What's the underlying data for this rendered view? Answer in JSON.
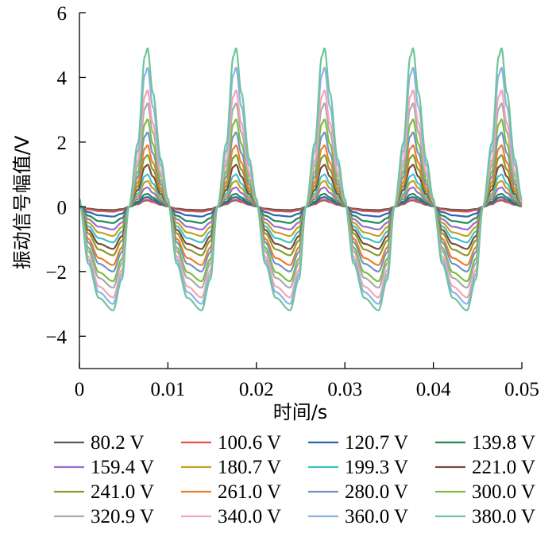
{
  "chart_data": {
    "type": "line",
    "title": "",
    "xlabel": "时间/s",
    "ylabel": "振动信号幅值/V",
    "xlim": [
      0,
      0.05
    ],
    "ylim": [
      -5,
      6
    ],
    "x_ticks": [
      "0",
      "0.01",
      "0.02",
      "0.03",
      "0.04",
      "0.05"
    ],
    "y_ticks": [
      "−4",
      "−2",
      "0",
      "2",
      "4",
      "6"
    ],
    "grid": false,
    "legend_position": "bottom",
    "period": 0.01,
    "series": [
      {
        "name": "80.2 V",
        "color": "#595959",
        "peak": 0.2,
        "trough": -0.1
      },
      {
        "name": "100.6 V",
        "color": "#e8524a",
        "peak": 0.22,
        "trough": -0.15
      },
      {
        "name": "120.7 V",
        "color": "#2a66b0",
        "peak": 0.3,
        "trough": -0.3
      },
      {
        "name": "139.8 V",
        "color": "#1e8a4f",
        "peak": 0.4,
        "trough": -0.5
      },
      {
        "name": "159.4 V",
        "color": "#9a6fc8",
        "peak": 0.6,
        "trough": -0.7
      },
      {
        "name": "180.7 V",
        "color": "#c7a020",
        "peak": 0.8,
        "trough": -0.9
      },
      {
        "name": "199.3 V",
        "color": "#3ec2c8",
        "peak": 1.0,
        "trough": -1.1
      },
      {
        "name": "221.0 V",
        "color": "#7a4a3a",
        "peak": 1.3,
        "trough": -1.3
      },
      {
        "name": "241.0 V",
        "color": "#8a9a2a",
        "peak": 1.6,
        "trough": -1.5
      },
      {
        "name": "261.0 V",
        "color": "#ee7d2a",
        "peak": 1.9,
        "trough": -1.8
      },
      {
        "name": "280.0 V",
        "color": "#6f93c4",
        "peak": 2.3,
        "trough": -2.0
      },
      {
        "name": "300.0 V",
        "color": "#7cbd40",
        "peak": 2.7,
        "trough": -2.3
      },
      {
        "name": "320.9 V",
        "color": "#aaaaaa",
        "peak": 3.2,
        "trough": -2.5
      },
      {
        "name": "340.0 V",
        "color": "#f4a6b0",
        "peak": 3.6,
        "trough": -2.8
      },
      {
        "name": "360.0 V",
        "color": "#8ab4e6",
        "peak": 4.3,
        "trough": -3.0
      },
      {
        "name": "380.0 V",
        "color": "#6fc49a",
        "peak": 4.9,
        "trough": -3.2
      }
    ]
  }
}
